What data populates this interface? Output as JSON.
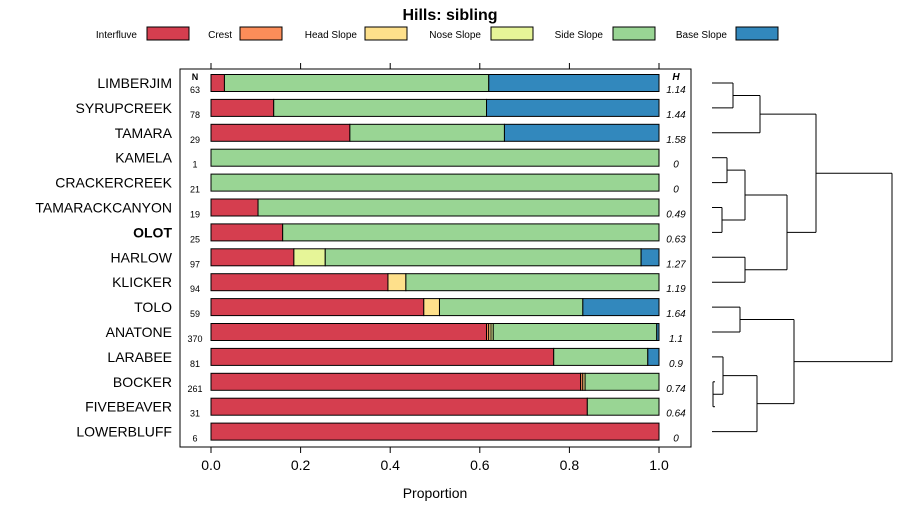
{
  "chart_data": {
    "type": "bar",
    "orientation": "horizontal",
    "stacked": true,
    "title": "Hills: sibling",
    "xlabel": "Proportion",
    "ylabel": "",
    "xlim": [
      0,
      1
    ],
    "xticks": [
      "0.0",
      "0.2",
      "0.4",
      "0.6",
      "0.8",
      "1.0"
    ],
    "legend_position": "top",
    "n_header": "N",
    "h_header": "H",
    "series": [
      {
        "name": "Interfluve",
        "color": "#d53e4f"
      },
      {
        "name": "Crest",
        "color": "#fc8d59"
      },
      {
        "name": "Head Slope",
        "color": "#fee08b"
      },
      {
        "name": "Nose Slope",
        "color": "#e6f598"
      },
      {
        "name": "Side Slope",
        "color": "#99d594"
      },
      {
        "name": "Base Slope",
        "color": "#3288bd"
      }
    ],
    "categories": [
      {
        "name": "LIMBERJIM",
        "n": "63",
        "h": "1.14",
        "bold": false,
        "values": [
          0.03,
          0,
          0,
          0,
          0.59,
          0.38
        ]
      },
      {
        "name": "SYRUPCREEK",
        "n": "78",
        "h": "1.44",
        "bold": false,
        "values": [
          0.14,
          0,
          0,
          0,
          0.475,
          0.385
        ]
      },
      {
        "name": "TAMARA",
        "n": "29",
        "h": "1.58",
        "bold": false,
        "values": [
          0.31,
          0,
          0,
          0,
          0.345,
          0.345
        ]
      },
      {
        "name": "KAMELA",
        "n": "1",
        "h": "0",
        "bold": false,
        "values": [
          0,
          0,
          0,
          0,
          1.0,
          0
        ]
      },
      {
        "name": "CRACKERCREEK",
        "n": "21",
        "h": "0",
        "bold": false,
        "values": [
          0,
          0,
          0,
          0,
          1.0,
          0
        ]
      },
      {
        "name": "TAMARACKCANYON",
        "n": "19",
        "h": "0.49",
        "bold": false,
        "values": [
          0.105,
          0,
          0,
          0,
          0.895,
          0
        ]
      },
      {
        "name": "OLOT",
        "n": "25",
        "h": "0.63",
        "bold": true,
        "values": [
          0.16,
          0,
          0,
          0,
          0.84,
          0
        ]
      },
      {
        "name": "HARLOW",
        "n": "97",
        "h": "1.27",
        "bold": false,
        "values": [
          0.185,
          0,
          0,
          0.07,
          0.705,
          0.04
        ]
      },
      {
        "name": "KLICKER",
        "n": "94",
        "h": "1.19",
        "bold": false,
        "values": [
          0.395,
          0,
          0.04,
          0,
          0.565,
          0
        ]
      },
      {
        "name": "TOLO",
        "n": "59",
        "h": "1.64",
        "bold": false,
        "values": [
          0.475,
          0,
          0.035,
          0,
          0.32,
          0.17
        ]
      },
      {
        "name": "ANATONE",
        "n": "370",
        "h": "1.1",
        "bold": false,
        "values": [
          0.615,
          0.005,
          0.005,
          0.005,
          0.365,
          0.005
        ]
      },
      {
        "name": "LARABEE",
        "n": "81",
        "h": "0.9",
        "bold": false,
        "values": [
          0.765,
          0,
          0,
          0,
          0.21,
          0.025
        ]
      },
      {
        "name": "BOCKER",
        "n": "261",
        "h": "0.74",
        "bold": false,
        "values": [
          0.825,
          0.005,
          0.005,
          0,
          0.165,
          0
        ]
      },
      {
        "name": "FIVEBEAVER",
        "n": "31",
        "h": "0.64",
        "bold": false,
        "values": [
          0.84,
          0,
          0,
          0,
          0.16,
          0
        ]
      },
      {
        "name": "LOWERBLUFF",
        "n": "6",
        "h": "0",
        "bold": false,
        "values": [
          1.0,
          0,
          0,
          0,
          0,
          0
        ]
      }
    ]
  }
}
